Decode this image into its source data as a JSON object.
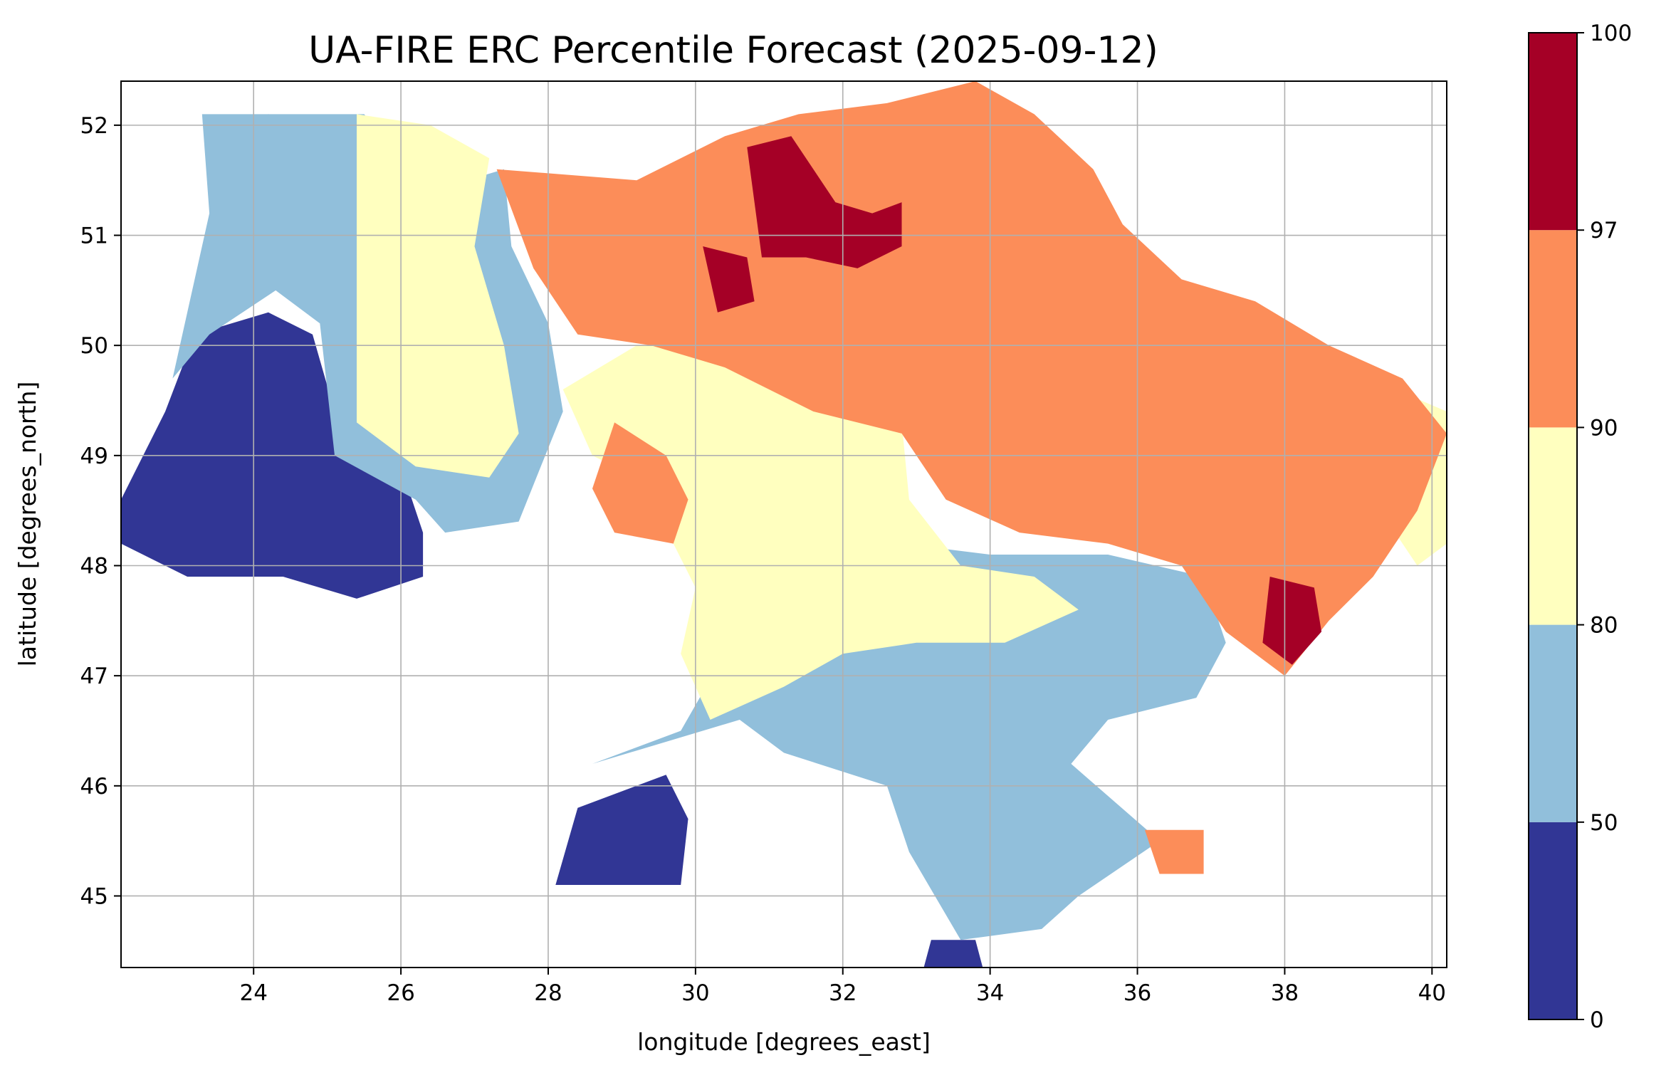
{
  "title": "UA-FIRE ERC Percentile Forecast (2025-09-12)",
  "xlabel": "longitude [degrees_east]",
  "ylabel": "latitude [degrees_north]",
  "x_ticks": [
    "24",
    "26",
    "28",
    "30",
    "32",
    "34",
    "36",
    "38",
    "40"
  ],
  "y_ticks": [
    "45",
    "46",
    "47",
    "48",
    "49",
    "50",
    "51",
    "52"
  ],
  "colorbar": {
    "ticks": [
      "0",
      "50",
      "80",
      "90",
      "97",
      "100"
    ],
    "bins": [
      {
        "range": [
          0,
          50
        ],
        "color": "#313695"
      },
      {
        "range": [
          50,
          80
        ],
        "color": "#91bfdb"
      },
      {
        "range": [
          80,
          90
        ],
        "color": "#ffffbf"
      },
      {
        "range": [
          90,
          97
        ],
        "color": "#fc8d59"
      },
      {
        "range": [
          97,
          100
        ],
        "color": "#a50026"
      }
    ]
  },
  "chart_data": {
    "type": "heatmap",
    "title": "UA-FIRE ERC Percentile Forecast (2025-09-12)",
    "xlabel": "longitude [degrees_east]",
    "ylabel": "latitude [degrees_north]",
    "xlim": [
      22.2,
      40.2
    ],
    "ylim": [
      44.35,
      52.4
    ],
    "grid": true,
    "regions": [
      {
        "name": "west",
        "class": "0-50",
        "polygon": [
          [
            22.2,
            48.6
          ],
          [
            22.8,
            49.4
          ],
          [
            23.2,
            50.1
          ],
          [
            24.2,
            50.3
          ],
          [
            24.8,
            50.1
          ],
          [
            25.1,
            49.4
          ],
          [
            25.6,
            49.0
          ],
          [
            26.1,
            48.7
          ],
          [
            26.3,
            48.3
          ],
          [
            26.3,
            47.9
          ],
          [
            25.4,
            47.7
          ],
          [
            24.4,
            47.9
          ],
          [
            23.1,
            47.9
          ],
          [
            22.2,
            48.2
          ]
        ]
      },
      {
        "name": "northwest",
        "class": "0-50",
        "polygon": [
          [
            23.4,
            51.6
          ],
          [
            24.2,
            52.1
          ],
          [
            25.0,
            52.0
          ],
          [
            25.1,
            51.3
          ],
          [
            24.6,
            50.9
          ],
          [
            23.8,
            50.9
          ],
          [
            23.6,
            51.2
          ]
        ]
      },
      {
        "name": "south-west",
        "class": "0-50",
        "polygon": [
          [
            28.1,
            45.1
          ],
          [
            28.4,
            45.8
          ],
          [
            29.6,
            46.1
          ],
          [
            29.9,
            45.7
          ],
          [
            29.8,
            45.1
          ]
        ]
      },
      {
        "name": "crimea-south",
        "class": "0-50",
        "polygon": [
          [
            33.2,
            44.6
          ],
          [
            33.8,
            44.6
          ],
          [
            33.9,
            44.35
          ],
          [
            33.1,
            44.35
          ]
        ]
      },
      {
        "name": "northwest-ring",
        "class": "50-80",
        "polygon": [
          [
            23.3,
            52.1
          ],
          [
            25.5,
            52.1
          ],
          [
            26.4,
            51.4
          ],
          [
            27.4,
            51.6
          ],
          [
            27.5,
            50.9
          ],
          [
            28.0,
            50.2
          ],
          [
            28.2,
            49.4
          ],
          [
            27.9,
            48.9
          ],
          [
            27.6,
            48.4
          ],
          [
            26.6,
            48.3
          ],
          [
            26.2,
            48.6
          ],
          [
            25.1,
            49.0
          ],
          [
            24.9,
            50.2
          ],
          [
            24.3,
            50.5
          ],
          [
            23.4,
            50.1
          ],
          [
            22.9,
            49.7
          ],
          [
            23.4,
            51.2
          ]
        ]
      },
      {
        "name": "south",
        "class": "50-80",
        "polygon": [
          [
            28.6,
            46.2
          ],
          [
            29.8,
            46.5
          ],
          [
            30.4,
            47.2
          ],
          [
            31.0,
            48.0
          ],
          [
            32.8,
            48.2
          ],
          [
            34.0,
            48.1
          ],
          [
            35.6,
            48.1
          ],
          [
            36.9,
            47.9
          ],
          [
            37.2,
            47.3
          ],
          [
            36.8,
            46.8
          ],
          [
            35.6,
            46.6
          ],
          [
            35.1,
            46.2
          ],
          [
            36.3,
            45.5
          ],
          [
            35.2,
            45.0
          ],
          [
            34.7,
            44.7
          ],
          [
            33.6,
            44.6
          ],
          [
            32.9,
            45.4
          ],
          [
            32.6,
            46.0
          ],
          [
            31.2,
            46.3
          ],
          [
            30.6,
            46.6
          ]
        ]
      },
      {
        "name": "centre-west",
        "class": "80-90",
        "polygon": [
          [
            25.4,
            52.1
          ],
          [
            26.4,
            52.0
          ],
          [
            27.2,
            51.7
          ],
          [
            27.0,
            50.9
          ],
          [
            27.4,
            50.0
          ],
          [
            27.6,
            49.2
          ],
          [
            27.2,
            48.8
          ],
          [
            26.2,
            48.9
          ],
          [
            25.4,
            49.3
          ],
          [
            25.4,
            50.7
          ]
        ]
      },
      {
        "name": "centre",
        "class": "80-90",
        "polygon": [
          [
            28.2,
            49.6
          ],
          [
            29.2,
            50.0
          ],
          [
            30.3,
            50.0
          ],
          [
            31.2,
            49.6
          ],
          [
            32.2,
            49.4
          ],
          [
            32.8,
            49.3
          ],
          [
            32.9,
            48.6
          ],
          [
            33.6,
            48.0
          ],
          [
            34.6,
            47.9
          ],
          [
            35.2,
            47.6
          ],
          [
            34.2,
            47.3
          ],
          [
            33.0,
            47.3
          ],
          [
            32.0,
            47.2
          ],
          [
            31.2,
            46.9
          ],
          [
            30.2,
            46.6
          ],
          [
            29.8,
            47.2
          ],
          [
            30.0,
            47.8
          ],
          [
            29.7,
            48.2
          ],
          [
            29.2,
            48.8
          ],
          [
            28.6,
            49.0
          ]
        ]
      },
      {
        "name": "east-pale",
        "class": "80-90",
        "polygon": [
          [
            38.8,
            49.8
          ],
          [
            39.5,
            49.6
          ],
          [
            40.2,
            49.4
          ],
          [
            40.2,
            48.2
          ],
          [
            39.8,
            48.0
          ],
          [
            39.4,
            48.4
          ],
          [
            38.9,
            48.9
          ],
          [
            38.6,
            49.3
          ]
        ]
      },
      {
        "name": "north-east",
        "class": "90-97",
        "polygon": [
          [
            27.3,
            51.6
          ],
          [
            29.2,
            51.5
          ],
          [
            30.4,
            51.9
          ],
          [
            31.4,
            52.1
          ],
          [
            32.6,
            52.2
          ],
          [
            33.8,
            52.4
          ],
          [
            34.6,
            52.1
          ],
          [
            35.4,
            51.6
          ],
          [
            35.8,
            51.1
          ],
          [
            36.6,
            50.6
          ],
          [
            37.6,
            50.4
          ],
          [
            38.6,
            50.0
          ],
          [
            39.6,
            49.7
          ],
          [
            40.2,
            49.2
          ],
          [
            39.8,
            48.5
          ],
          [
            39.2,
            47.9
          ],
          [
            38.6,
            47.5
          ],
          [
            38.0,
            47.0
          ],
          [
            37.2,
            47.4
          ],
          [
            36.6,
            48.0
          ],
          [
            35.6,
            48.2
          ],
          [
            34.4,
            48.3
          ],
          [
            33.4,
            48.6
          ],
          [
            32.8,
            49.2
          ],
          [
            31.6,
            49.4
          ],
          [
            30.4,
            49.8
          ],
          [
            29.4,
            50.0
          ],
          [
            28.4,
            50.1
          ],
          [
            27.8,
            50.7
          ]
        ]
      },
      {
        "name": "centre-south-orange",
        "class": "90-97",
        "polygon": [
          [
            28.9,
            49.3
          ],
          [
            29.6,
            49.0
          ],
          [
            29.9,
            48.6
          ],
          [
            29.7,
            48.2
          ],
          [
            28.9,
            48.3
          ],
          [
            28.6,
            48.7
          ]
        ]
      },
      {
        "name": "sea-of-azov",
        "class": "90-97",
        "polygon": [
          [
            36.1,
            45.6
          ],
          [
            36.9,
            45.6
          ],
          [
            36.9,
            45.2
          ],
          [
            36.3,
            45.2
          ]
        ]
      },
      {
        "name": "north-core",
        "class": "97-100",
        "polygon": [
          [
            30.7,
            51.8
          ],
          [
            31.3,
            51.9
          ],
          [
            31.9,
            51.3
          ],
          [
            32.4,
            51.2
          ],
          [
            32.8,
            51.3
          ],
          [
            32.8,
            50.9
          ],
          [
            32.2,
            50.7
          ],
          [
            31.5,
            50.8
          ],
          [
            30.9,
            50.8
          ]
        ]
      },
      {
        "name": "north-west-spot",
        "class": "97-100",
        "polygon": [
          [
            30.1,
            50.9
          ],
          [
            30.7,
            50.8
          ],
          [
            30.8,
            50.4
          ],
          [
            30.3,
            50.3
          ]
        ]
      },
      {
        "name": "east-spot",
        "class": "97-100",
        "polygon": [
          [
            37.8,
            47.9
          ],
          [
            38.4,
            47.8
          ],
          [
            38.5,
            47.4
          ],
          [
            38.1,
            47.1
          ],
          [
            37.7,
            47.3
          ]
        ]
      }
    ]
  }
}
